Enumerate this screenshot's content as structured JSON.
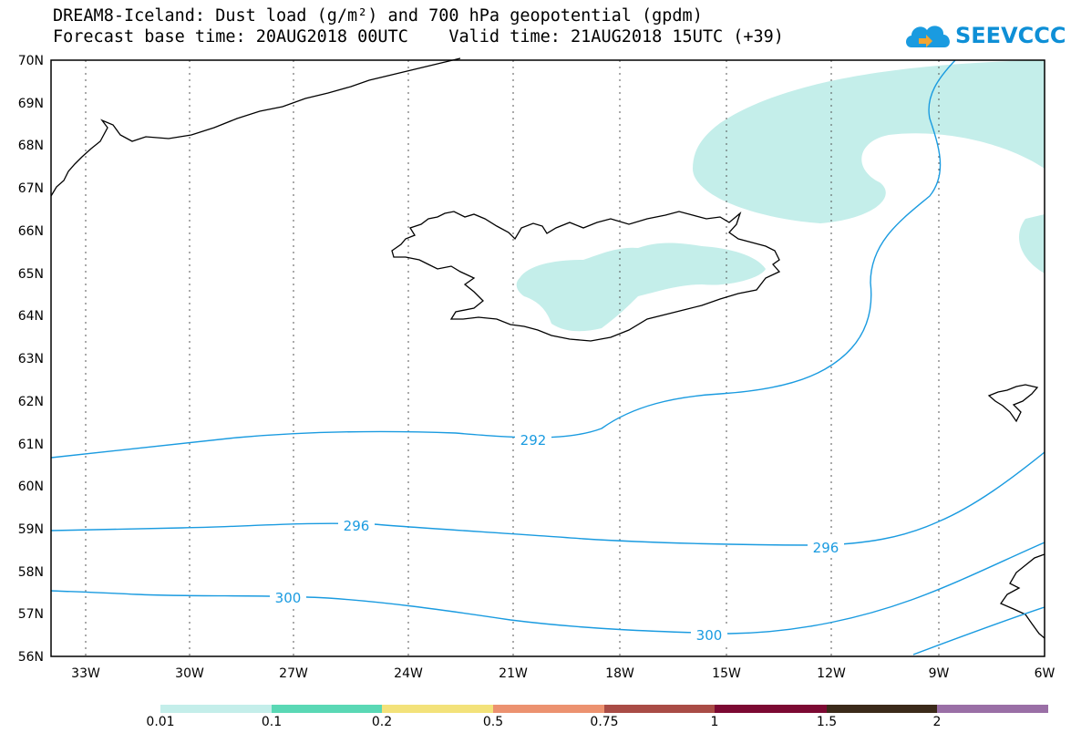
{
  "title_line1": "DREAM8-Iceland: Dust load (g/m²) and 700 hPa geopotential (gpdm)",
  "title_line2": "Forecast base time: 20AUG2018 00UTC    Valid time: 21AUG2018 15UTC (+39)",
  "logo_text": "SEEVCCC",
  "logo_icon": "cloud-icon",
  "map": {
    "lat_labels": [
      "70N",
      "69N",
      "68N",
      "67N",
      "66N",
      "65N",
      "64N",
      "63N",
      "62N",
      "61N",
      "60N",
      "59N",
      "58N",
      "57N",
      "56N"
    ],
    "lon_labels": [
      "33W",
      "30W",
      "27W",
      "24W",
      "21W",
      "18W",
      "15W",
      "12W",
      "9W",
      "6W"
    ],
    "contour_labels": [
      "292",
      "296",
      "296",
      "300",
      "300"
    ],
    "dust_color": "#c4eeea",
    "contour_color": "#1a9be0"
  },
  "legend": {
    "colors": [
      "#c4eeea",
      "#5ad8b5",
      "#f3e27a",
      "#ec9270",
      "#a94c46",
      "#7c0a33",
      "#3b2a1a",
      "#9a6fa6"
    ],
    "labels": [
      "0.01",
      "0.1",
      "0.2",
      "0.5",
      "0.75",
      "1",
      "1.5",
      "2"
    ]
  }
}
